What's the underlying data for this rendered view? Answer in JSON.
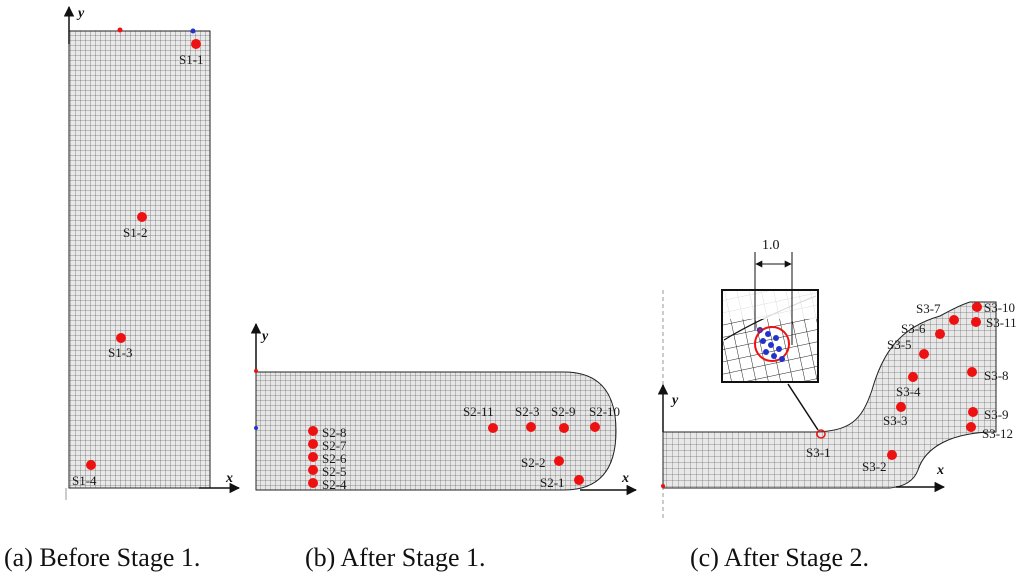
{
  "colors": {
    "mesh_line": "#3a3a3a",
    "mesh_fill": "#e9e9e9",
    "point": "#ee1111",
    "origin_blue": "#2233cc",
    "axis": "#111111"
  },
  "axes": {
    "x": "x",
    "y": "y"
  },
  "panels": [
    {
      "caption": "(a) Before Stage 1.",
      "points": [
        "S1-1",
        "S1-2",
        "S1-3",
        "S1-4"
      ]
    },
    {
      "caption": "(b) After Stage 1.",
      "points": [
        "S2-1",
        "S2-2",
        "S2-3",
        "S2-4",
        "S2-5",
        "S2-6",
        "S2-7",
        "S2-8",
        "S2-9",
        "S2-10",
        "S2-11"
      ]
    },
    {
      "caption": "(c) After Stage 2.",
      "points": [
        "S3-1",
        "S3-2",
        "S3-3",
        "S3-4",
        "S3-5",
        "S3-6",
        "S3-7",
        "S3-8",
        "S3-9",
        "S3-10",
        "S3-11",
        "S3-12"
      ],
      "inset_dimension": "1.0"
    }
  ]
}
